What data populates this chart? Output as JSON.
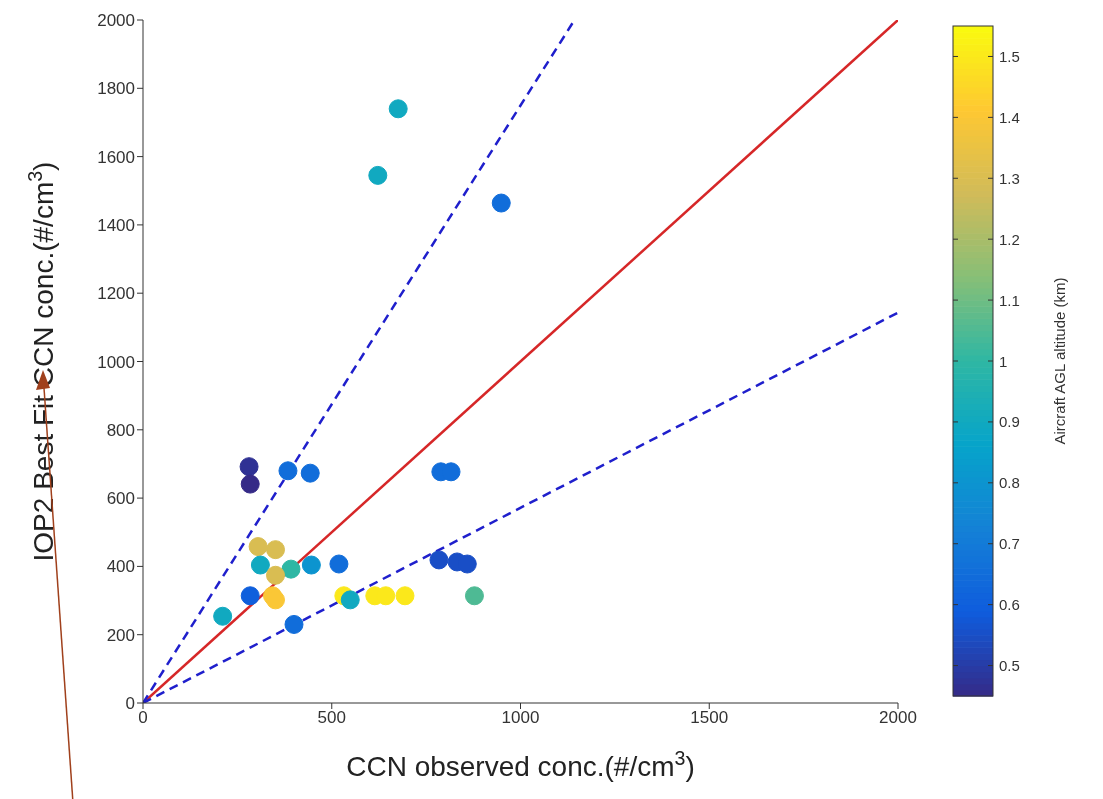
{
  "chart_data": {
    "type": "scatter",
    "xlabel": "CCN observed conc.(#/cm$^{3}$)",
    "ylabel": "IOP2 Best Fit CCN conc.(#/cm$^{3}$)",
    "clabel": "Aircraft AGL altitude (km)",
    "xlim": [
      0,
      2000
    ],
    "xticks": [
      0,
      500,
      1000,
      1500,
      2000
    ],
    "ylim": [
      0,
      2000
    ],
    "yticks": [
      0,
      200,
      400,
      600,
      800,
      1000,
      1200,
      1400,
      1600,
      1800,
      2000
    ],
    "clim": [
      0.45,
      1.55
    ],
    "cticks": [
      0.5,
      0.6,
      0.7,
      0.8,
      0.9,
      1,
      1.1,
      1.2,
      1.3,
      1.4,
      1.5
    ],
    "grid": false,
    "series": [
      {
        "marker": "circle",
        "x": [
          281,
          284,
          384,
          443,
          789,
          816,
          305,
          351,
          311,
          392,
          446,
          519,
          351,
          284,
          343,
          351,
          532,
          549,
          614,
          643,
          694,
          878,
          211,
          400,
          784,
          832,
          859,
          676,
          622,
          949
        ],
        "values": [
          692,
          641,
          680,
          673,
          677,
          677,
          458,
          449,
          404,
          392,
          404,
          407,
          374,
          314,
          314,
          302,
          314,
          302,
          314,
          314,
          314,
          314,
          254,
          230,
          419,
          413,
          407,
          1740,
          1545,
          1464
        ],
        "cvalues": [
          0.47,
          0.45,
          0.65,
          0.65,
          0.65,
          0.65,
          1.3,
          1.3,
          0.9,
          1.0,
          0.8,
          0.65,
          1.3,
          0.6,
          1.4,
          1.4,
          1.5,
          0.9,
          1.5,
          1.5,
          1.5,
          1.05,
          0.9,
          0.65,
          0.55,
          0.55,
          0.55,
          0.9,
          0.9,
          0.65
        ],
        "colors": [
          "#2f3193",
          "#352a87",
          "#116dda",
          "#116dda",
          "#116dda",
          "#116dda",
          "#d9bd52",
          "#d9bd52",
          "#11a9c0",
          "#2eb7a4",
          "#0c94cf",
          "#116dda",
          "#d9bd52",
          "#0f5fdc",
          "#fac736",
          "#fac736",
          "#fbe81b",
          "#11a9c0",
          "#fbe81b",
          "#fbe81b",
          "#fbe81b",
          "#4eba94",
          "#11a9c0",
          "#116dda",
          "#194ec6",
          "#194ec6",
          "#194ec6",
          "#11a9c0",
          "#11a9c0",
          "#116dda"
        ]
      },
      {
        "type": "line",
        "marker": "none",
        "x": [
          0,
          2000
        ],
        "values": [
          0,
          2000
        ],
        "color": "#d62728",
        "line_style": "solid"
      },
      {
        "type": "line",
        "marker": "none",
        "x": [
          0,
          1143
        ],
        "values": [
          0,
          2000
        ],
        "color": "#1f1fcc",
        "line_style": "dashed"
      },
      {
        "type": "line",
        "marker": "none",
        "x": [
          0,
          2000
        ],
        "values": [
          0,
          1143
        ],
        "color": "#1f1fcc",
        "line_style": "dashed"
      }
    ]
  }
}
